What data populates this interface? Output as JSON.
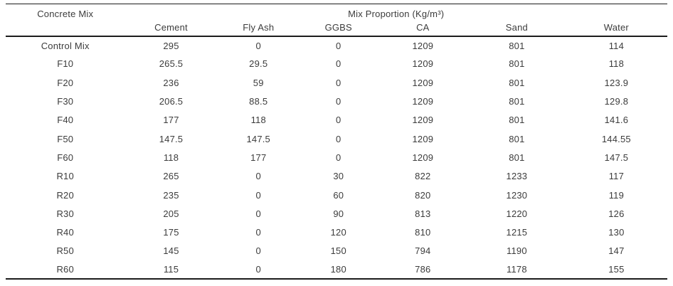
{
  "table": {
    "header": {
      "row_label_column": "Concrete Mix",
      "group_label": "Mix Proportion (Kg/m³)",
      "columns": [
        "Cement",
        "Fly Ash",
        "GGBS",
        "CA",
        "Sand",
        "Water"
      ]
    },
    "rows": [
      {
        "mix": "Control Mix",
        "values": [
          "295",
          "0",
          "0",
          "1209",
          "801",
          "114"
        ]
      },
      {
        "mix": "F10",
        "values": [
          "265.5",
          "29.5",
          "0",
          "1209",
          "801",
          "118"
        ]
      },
      {
        "mix": "F20",
        "values": [
          "236",
          "59",
          "0",
          "1209",
          "801",
          "123.9"
        ]
      },
      {
        "mix": "F30",
        "values": [
          "206.5",
          "88.5",
          "0",
          "1209",
          "801",
          "129.8"
        ]
      },
      {
        "mix": "F40",
        "values": [
          "177",
          "118",
          "0",
          "1209",
          "801",
          "141.6"
        ]
      },
      {
        "mix": "F50",
        "values": [
          "147.5",
          "147.5",
          "0",
          "1209",
          "801",
          "144.55"
        ]
      },
      {
        "mix": "F60",
        "values": [
          "118",
          "177",
          "0",
          "1209",
          "801",
          "147.5"
        ]
      },
      {
        "mix": "R10",
        "values": [
          "265",
          "0",
          "30",
          "822",
          "1233",
          "117"
        ]
      },
      {
        "mix": "R20",
        "values": [
          "235",
          "0",
          "60",
          "820",
          "1230",
          "119"
        ]
      },
      {
        "mix": "R30",
        "values": [
          "205",
          "0",
          "90",
          "813",
          "1220",
          "126"
        ]
      },
      {
        "mix": "R40",
        "values": [
          "175",
          "0",
          "120",
          "810",
          "1215",
          "130"
        ]
      },
      {
        "mix": "R50",
        "values": [
          "145",
          "0",
          "150",
          "794",
          "1190",
          "147"
        ]
      },
      {
        "mix": "R60",
        "values": [
          "115",
          "0",
          "180",
          "786",
          "1178",
          "155"
        ]
      }
    ],
    "colors": {
      "text": "#3c3c3c",
      "rule": "#1c1c1c",
      "background": "#ffffff"
    }
  }
}
